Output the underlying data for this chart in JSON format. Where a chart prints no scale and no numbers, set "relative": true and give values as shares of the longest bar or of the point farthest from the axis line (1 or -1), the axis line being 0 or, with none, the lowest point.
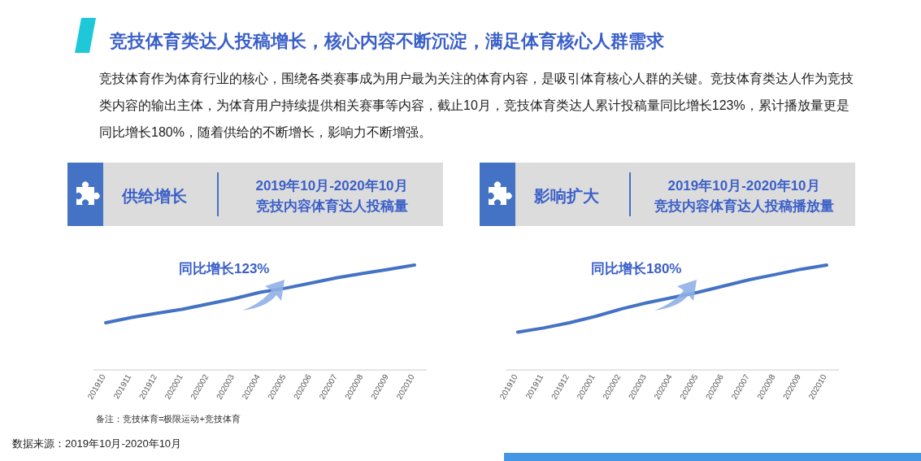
{
  "chart_data": [
    {
      "type": "other",
      "title": "竞技体育类达人投稿增长，核心内容不断沉淀，满足体育核心人群需求",
      "subtitle": "竞技体育作为体育行业的核心，围绕各类赛事成为用户最为关注的体育内容，是吸引体育核心人群的关键。竞技体育类达人作为竞技类内容的输出主体，为体育用户持续提供相关赛事等内容，截止10月，竞技体育类达人累计投稿量同比增长123%，累计播放量更是同比增长180%，随着供给的不断增长，影响力不断增强。",
      "annotations": [
        "数据来源：2019年10月-2020年10月"
      ]
    },
    {
      "type": "line",
      "title": "供给增长",
      "subtitle": "2019年10月-2020年10月",
      "relative": true,
      "categories": [
        "201910",
        "201911",
        "201912",
        "202001",
        "202002",
        "202003",
        "202004",
        "202005",
        "202006",
        "202007",
        "202008",
        "202009",
        "202010"
      ],
      "series": [
        {
          "color": "#4472c4",
          "values": [
            0.45,
            0.5,
            0.54,
            0.58,
            0.63,
            0.68,
            0.74,
            0.78,
            0.83,
            0.88,
            0.92,
            0.96,
            1
          ]
        }
      ],
      "annotations": [
        "竞技内容体育达人投稿量",
        "同比增长123%",
        "备注：竞技体育=极限运动+竞技体育"
      ]
    },
    {
      "type": "line",
      "title": "影响扩大",
      "subtitle": "2019年10月-2020年10月",
      "relative": true,
      "categories": [
        "201910",
        "201911",
        "201912",
        "202001",
        "202002",
        "202003",
        "202004",
        "202005",
        "202006",
        "202007",
        "202008",
        "202009",
        "202010"
      ],
      "series": [
        {
          "color": "#4472c4",
          "values": [
            0.36,
            0.4,
            0.45,
            0.51,
            0.58,
            0.64,
            0.69,
            0.74,
            0.8,
            0.86,
            0.91,
            0.96,
            1
          ]
        }
      ],
      "annotations": [
        "竞技内容体育达人投稿播放量",
        "同比增长180%"
      ]
    }
  ]
}
